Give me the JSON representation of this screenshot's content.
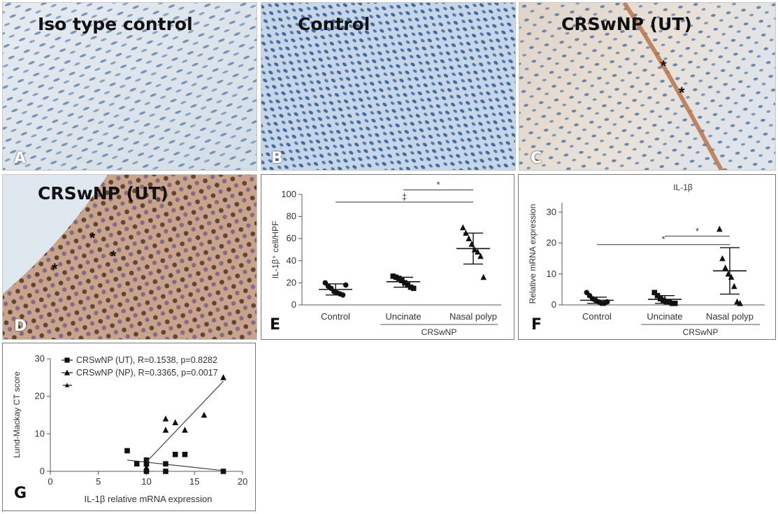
{
  "panels": {
    "a": {
      "title": "Iso type control",
      "label": "A"
    },
    "b": {
      "title": "Control",
      "label": "B"
    },
    "c": {
      "title": "CRSwNP (UT)",
      "label": "C"
    },
    "d": {
      "title": "CRSwNP (UT)",
      "label": "D"
    },
    "e": {
      "label": "E"
    },
    "f": {
      "label": "F"
    },
    "g": {
      "label": "G"
    }
  },
  "asterisk": "*",
  "chart_data": [
    {
      "type": "scatter",
      "panel": "E",
      "ylabel": "IL-1β⁺ cell/HPF",
      "categories": [
        "Control",
        "Uncinate",
        "Nasal polyp"
      ],
      "group_label": "CRSwNP",
      "ylim": [
        0,
        100
      ],
      "yticks": [
        0,
        20,
        40,
        60,
        80,
        100
      ],
      "series": [
        {
          "marker": "circle",
          "values": [
            20,
            17,
            15,
            12,
            11,
            10,
            9,
            18
          ]
        },
        {
          "marker": "square",
          "values": [
            26,
            25,
            24,
            22,
            20,
            18,
            16,
            15
          ]
        },
        {
          "marker": "triangle",
          "values": [
            70,
            65,
            60,
            55,
            50,
            48,
            44,
            25
          ]
        }
      ],
      "summary": [
        {
          "mean": 14,
          "lower": 9,
          "upper": 19
        },
        {
          "mean": 21,
          "lower": 16,
          "upper": 25
        },
        {
          "mean": 51,
          "lower": 37,
          "upper": 65
        }
      ],
      "significance": [
        {
          "from": 1,
          "to": 2,
          "y": 104,
          "mark": "*"
        },
        {
          "from": 0,
          "to": 2,
          "y": 93,
          "mark": "‡"
        }
      ]
    },
    {
      "type": "scatter",
      "panel": "F",
      "title": "IL-1β",
      "ylabel": "Relative mRNA expression",
      "categories": [
        "Control",
        "Uncinate",
        "Nasal polyp"
      ],
      "group_label": "CRSwNP",
      "ylim": [
        0,
        33
      ],
      "yticks": [
        0,
        10,
        20,
        30
      ],
      "series": [
        {
          "marker": "circle",
          "values": [
            4,
            3,
            2,
            1.5,
            1,
            0.5,
            0.5,
            1
          ]
        },
        {
          "marker": "square",
          "values": [
            4,
            3,
            2,
            1.5,
            1,
            1,
            0.5,
            0.5
          ]
        },
        {
          "marker": "triangle",
          "values": [
            24.5,
            15,
            12,
            10,
            9,
            6,
            1,
            0.5
          ]
        }
      ],
      "summary": [
        {
          "mean": 1.5,
          "lower": 0.5,
          "upper": 2.5
        },
        {
          "mean": 1.8,
          "lower": 0.5,
          "upper": 3
        },
        {
          "mean": 11,
          "lower": 3.5,
          "upper": 18.5
        }
      ],
      "significance": [
        {
          "from": 1,
          "to": 2,
          "y": 22.2,
          "mark": "*"
        },
        {
          "from": 0,
          "to": 2,
          "y": 19.5,
          "mark": "*"
        }
      ]
    },
    {
      "type": "scatter",
      "panel": "G",
      "xlabel": "IL-1β relative mRNA expression",
      "ylabel": "Lund-Mackay CT score",
      "xlim": [
        0,
        20
      ],
      "ylim": [
        0,
        30
      ],
      "xticks": [
        0,
        5,
        10,
        15,
        20
      ],
      "yticks": [
        0,
        10,
        20,
        30
      ],
      "legend": [
        {
          "marker": "square",
          "text": "CRSwNP (UT), R=0.1538, p=0.8282"
        },
        {
          "marker": "triangle",
          "text": "CRSwNP (NP), R=0.3365, p=0.0017"
        },
        {
          "marker": "line",
          "text": ""
        }
      ],
      "series": [
        {
          "name": "CRSwNP (UT)",
          "marker": "square",
          "x": [
            8,
            9,
            10,
            10,
            10,
            12,
            12,
            13,
            14,
            18
          ],
          "y": [
            5.5,
            2,
            3,
            2,
            0,
            2,
            0,
            4.5,
            4.5,
            0
          ],
          "fit": {
            "x": [
              8,
              18
            ],
            "y": [
              3,
              0.2
            ]
          }
        },
        {
          "name": "CRSwNP (NP)",
          "marker": "triangle",
          "x": [
            10,
            10,
            10,
            12,
            12,
            13,
            14,
            16,
            18
          ],
          "y": [
            2,
            1,
            0.5,
            14,
            11,
            13,
            11,
            15,
            25
          ],
          "fit": {
            "x": [
              10,
              18
            ],
            "y": [
              2.5,
              24
            ]
          }
        }
      ]
    }
  ]
}
